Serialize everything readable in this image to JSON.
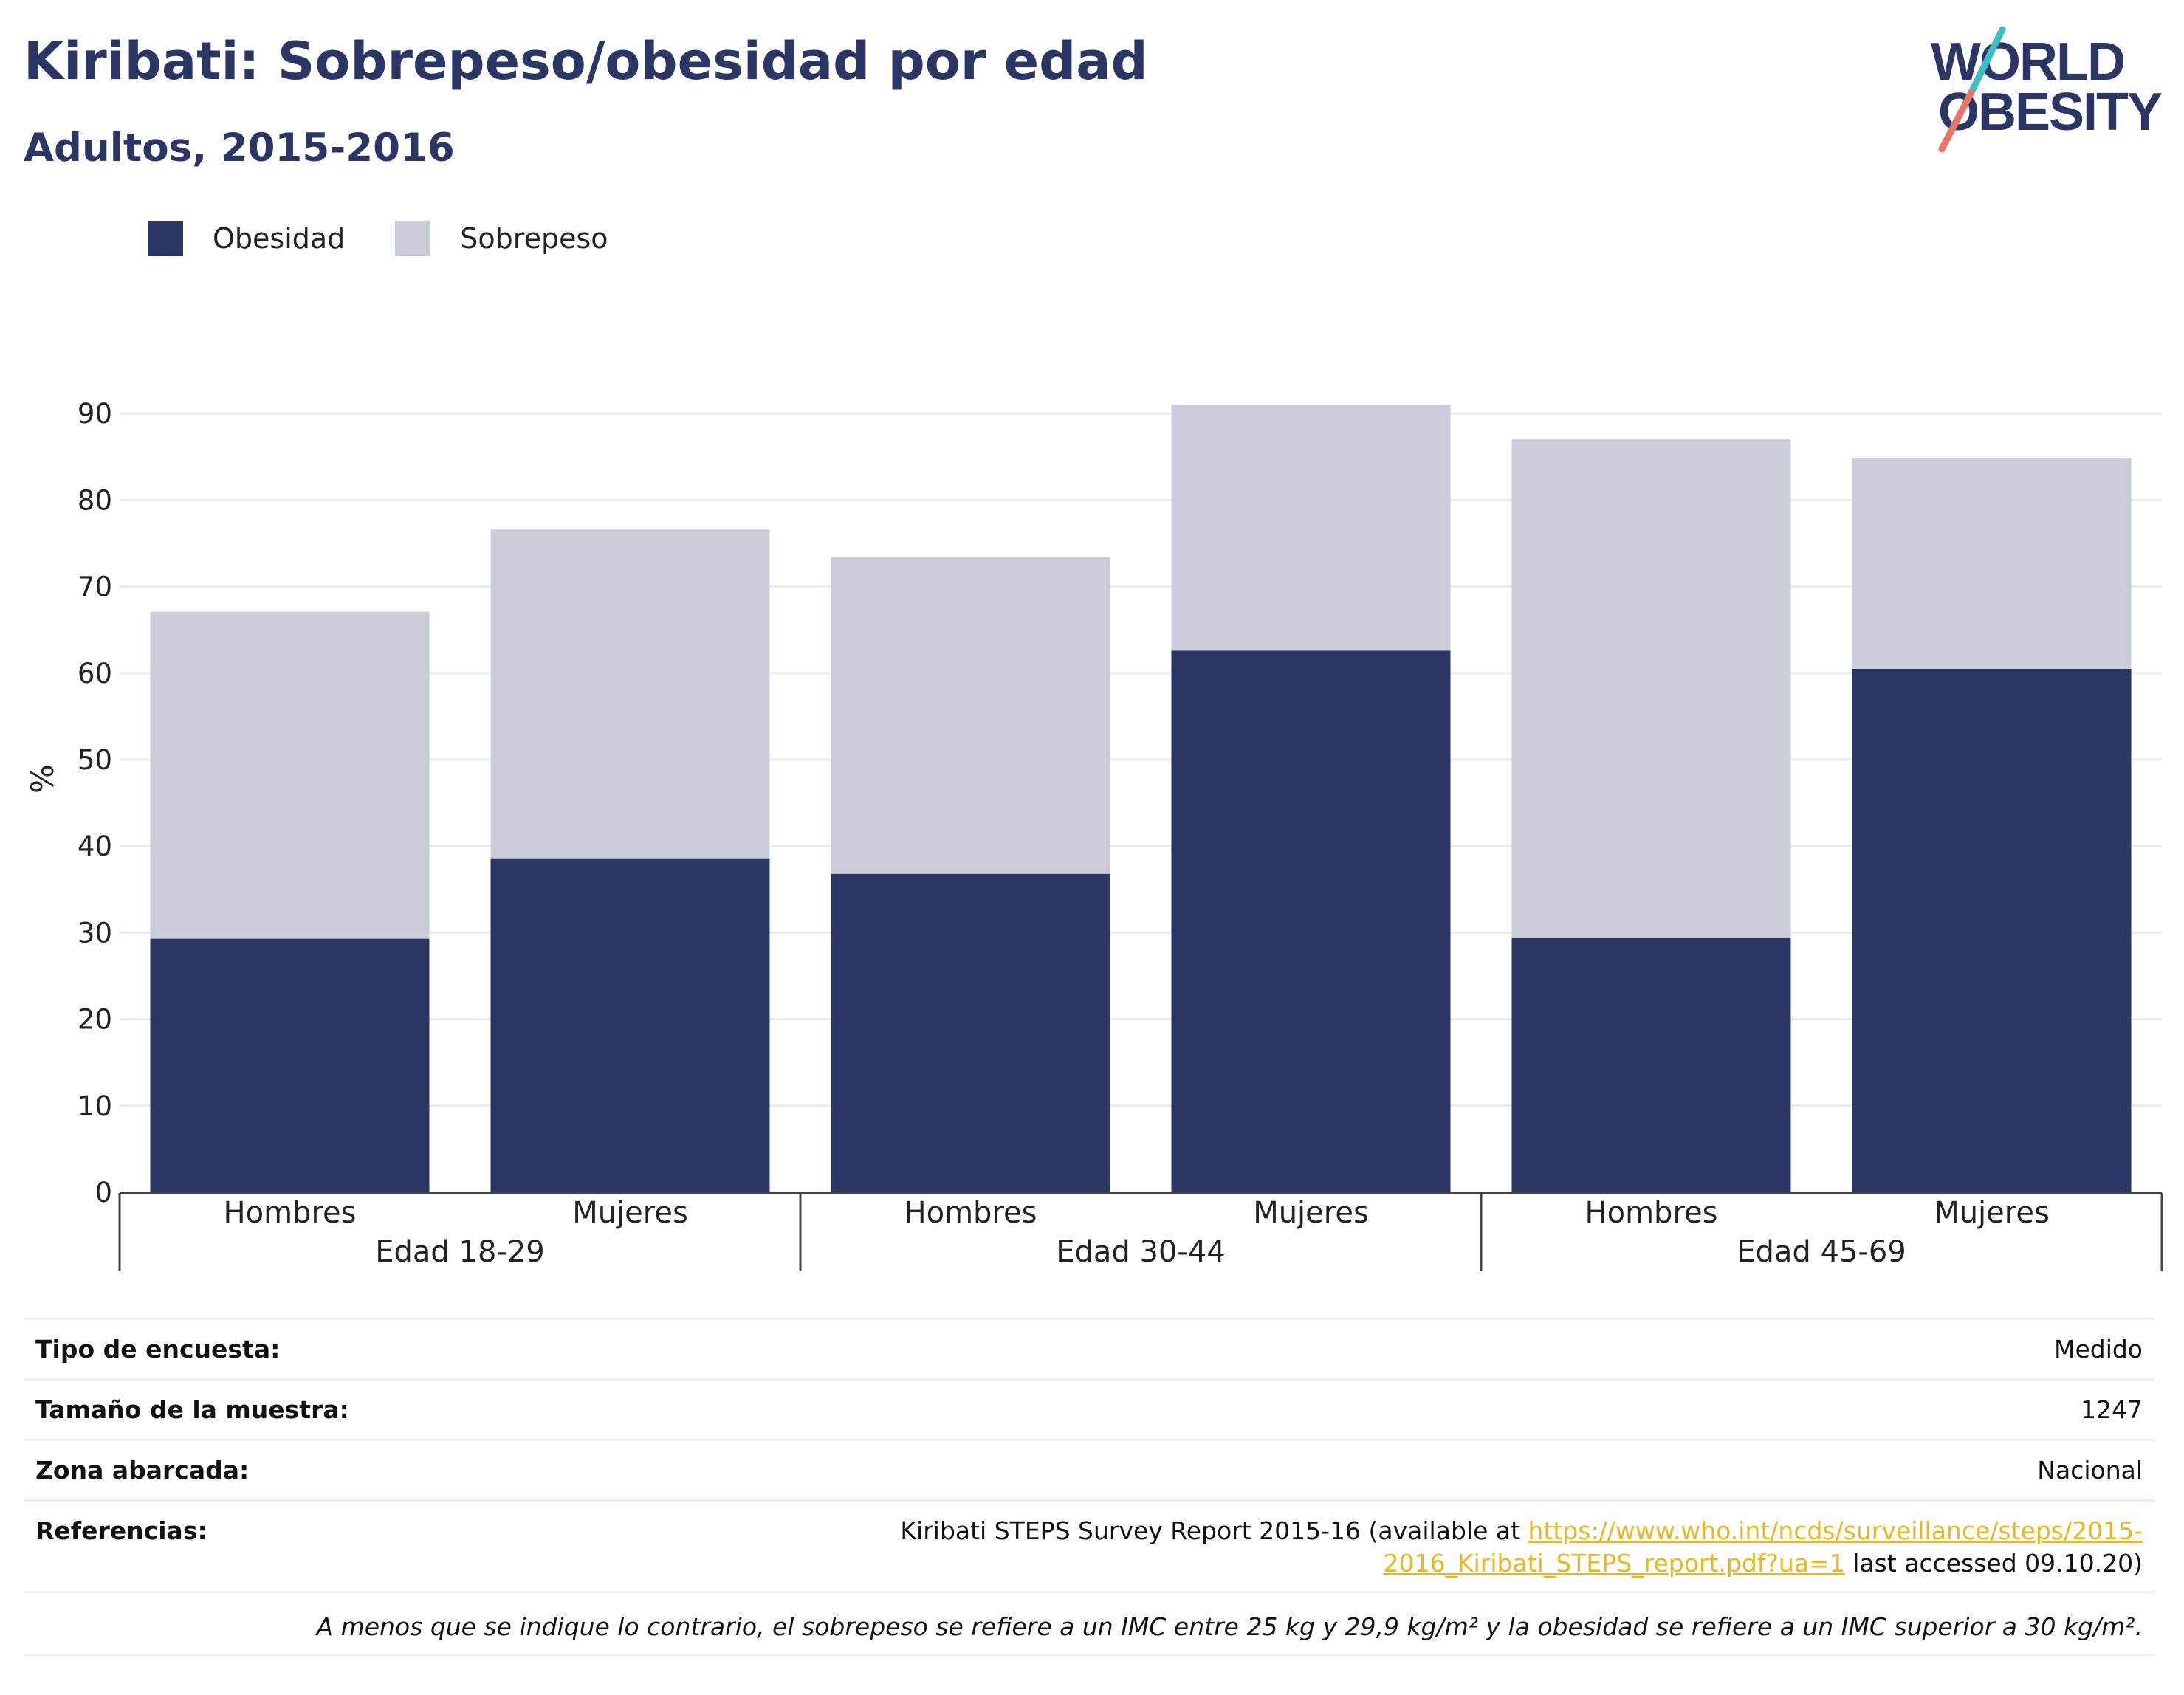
{
  "header": {
    "title": "Kiribati: Sobrepeso/obesidad por edad",
    "subtitle": "Adultos, 2015-2016",
    "logo_line1": "WORLD",
    "logo_line2": "OBESITY"
  },
  "legend": [
    {
      "label": "Obesidad",
      "color": "#2b3665"
    },
    {
      "label": "Sobrepeso",
      "color": "#cbccd9"
    }
  ],
  "chart_data": {
    "type": "bar",
    "stacked": true,
    "ylabel": "%",
    "ylim": [
      0,
      90
    ],
    "yticks": [
      0,
      10,
      20,
      30,
      40,
      50,
      60,
      70,
      80,
      90
    ],
    "grid": true,
    "legend_position": "top-left",
    "categories": [
      "Hombres",
      "Mujeres",
      "Hombres",
      "Mujeres",
      "Hombres",
      "Mujeres"
    ],
    "groups": [
      "Edad 18-29",
      "Edad 30-44",
      "Edad 45-69"
    ],
    "series": [
      {
        "name": "Obesidad",
        "color": "#2b3665",
        "values": [
          29.3,
          38.6,
          36.8,
          62.6,
          29.4,
          60.5
        ]
      },
      {
        "name": "Sobrepeso",
        "color": "#cbccd9",
        "values": [
          37.8,
          38.0,
          36.6,
          28.4,
          57.6,
          24.3
        ]
      }
    ]
  },
  "info": {
    "survey_type_label": "Tipo de encuesta:",
    "survey_type_value": "Medido",
    "sample_size_label": "Tamaño de la muestra:",
    "sample_size_value": "1247",
    "area_label": "Zona abarcada:",
    "area_value": "Nacional",
    "references_label": "Referencias:",
    "ref_prefix": "Kiribati STEPS Survey Report 2015-16 (available at ",
    "ref_link_line1": "https://www.who.int/ncds/surveillance/steps/2015-",
    "ref_link_line2": "2016_Kiribati_STEPS_report.pdf?ua=1",
    "ref_suffix": " last accessed 09.10.20)",
    "note": "A menos que se indique lo contrario, el sobrepeso se refiere a un IMC entre 25 kg y 29,9 kg/m² y la obesidad se refiere a un IMC superior a 30 kg/m²."
  }
}
